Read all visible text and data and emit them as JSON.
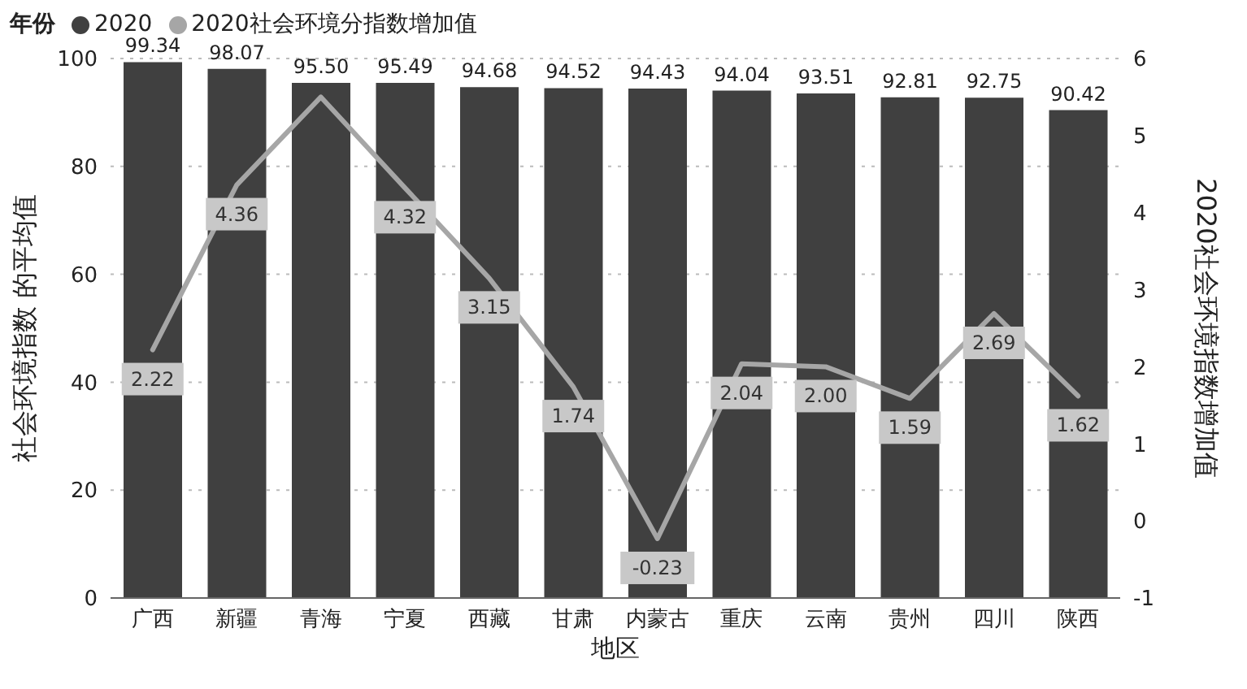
{
  "chart_data": {
    "type": "bar",
    "legend_title": "年份",
    "xlabel": "地区",
    "ylabel": "社会环境指数 的平均值",
    "y2label": "2020社会环境指数增加值",
    "categories": [
      "广西",
      "新疆",
      "青海",
      "宁夏",
      "西藏",
      "甘肃",
      "内蒙古",
      "重庆",
      "云南",
      "贵州",
      "四川",
      "陕西"
    ],
    "series": [
      {
        "name": "2020",
        "color": "#404040",
        "values": [
          99.34,
          98.07,
          95.5,
          95.49,
          94.68,
          94.52,
          94.43,
          94.04,
          93.51,
          92.81,
          92.75,
          90.42
        ],
        "value_labels": [
          "99.34",
          "98.07",
          "95.50",
          "95.49",
          "94.68",
          "94.52",
          "94.43",
          "94.04",
          "93.51",
          "92.81",
          "92.75",
          "90.42"
        ]
      },
      {
        "name": "2020社会环境分指数增加值",
        "type": "line",
        "axis": "y2",
        "color": "#a6a6a6",
        "values": [
          2.22,
          4.36,
          5.5,
          4.32,
          3.15,
          1.74,
          -0.23,
          2.04,
          2.0,
          1.59,
          2.69,
          1.62
        ],
        "value_labels": [
          "2.22",
          "4.36",
          null,
          "4.32",
          "3.15",
          "1.74",
          "-0.23",
          "2.04",
          "2.00",
          "1.59",
          "2.69",
          "1.62"
        ]
      }
    ],
    "ylim": [
      0,
      100
    ],
    "yticks": [
      0,
      20,
      40,
      60,
      80,
      100
    ],
    "y2lim": [
      -1,
      6
    ],
    "y2ticks": [
      -1,
      0,
      1,
      2,
      3,
      4,
      5,
      6
    ],
    "grid": "y",
    "legend": "top left",
    "line_style": "solid"
  }
}
